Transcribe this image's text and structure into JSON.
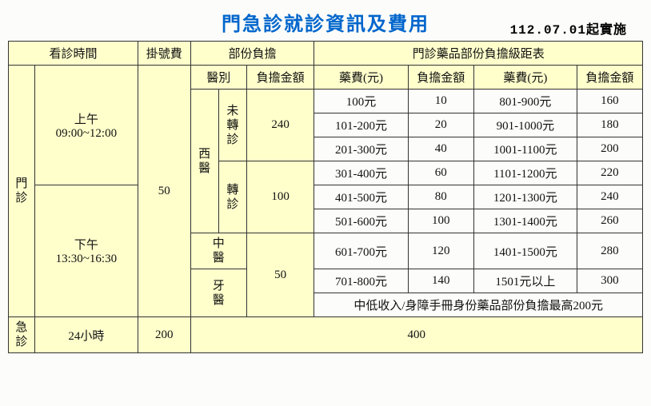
{
  "title": "門急診就診資訊及費用",
  "effective": "112.07.01起實施",
  "headers": {
    "visit_time": "看診時間",
    "reg_fee": "掛號費",
    "copay": "部份負擔",
    "drug_tier": "門診藥品部份負擔級距表",
    "dept": "醫別",
    "copay_amt": "負擔金額",
    "drug_fee": "藥費(元)",
    "copay_amt2": "負擔金額",
    "drug_fee2": "藥費(元)",
    "copay_amt3": "負擔金額"
  },
  "rows": {
    "outpatient": "門診",
    "morning": "上午",
    "morning_time": "09:00~12:00",
    "afternoon": "下午",
    "afternoon_time": "13:30~16:30",
    "reg_fee_out": "50",
    "western": "西醫",
    "no_referral": "未轉診",
    "referral": "轉診",
    "chinese": "中醫",
    "dental": "牙醫",
    "amt_240": "240",
    "amt_100": "100",
    "amt_50": "50",
    "emergency": "急診",
    "er_time": "24小時",
    "er_reg": "200",
    "er_copay": "400",
    "note": "中低收入/身障手冊身份藥品部份負擔最高200元"
  },
  "tiers": [
    {
      "f1": "100元",
      "a1": "10",
      "f2": "801-900元",
      "a2": "160"
    },
    {
      "f1": "101-200元",
      "a1": "20",
      "f2": "901-1000元",
      "a2": "180"
    },
    {
      "f1": "201-300元",
      "a1": "40",
      "f2": "1001-1100元",
      "a2": "200"
    },
    {
      "f1": "301-400元",
      "a1": "60",
      "f2": "1101-1200元",
      "a2": "220"
    },
    {
      "f1": "401-500元",
      "a1": "80",
      "f2": "1201-1300元",
      "a2": "240"
    },
    {
      "f1": "501-600元",
      "a1": "100",
      "f2": "1301-1400元",
      "a2": "260"
    },
    {
      "f1": "601-700元",
      "a1": "120",
      "f2": "1401-1500元",
      "a2": "280"
    },
    {
      "f1": "701-800元",
      "a1": "140",
      "f2": "1501元以上",
      "a2": "300"
    }
  ]
}
